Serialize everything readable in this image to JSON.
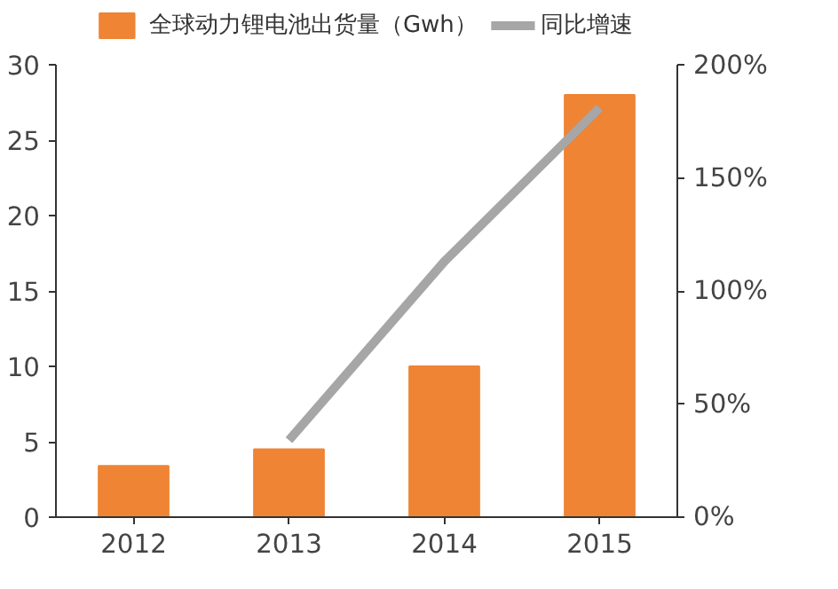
{
  "chart_data": {
    "type": "bar",
    "categories": [
      "2012",
      "2013",
      "2014",
      "2015"
    ],
    "series": [
      {
        "name": "全球动力锂电池出货量（Gwh）",
        "color": "#ee8434",
        "values": [
          3.4,
          4.5,
          10.0,
          28.0
        ]
      },
      {
        "name": "同比增速",
        "type": "line",
        "axis": "y2",
        "color": "#a6a6a6",
        "values": [
          null,
          34,
          113,
          181
        ]
      }
    ],
    "ylim": [
      0,
      30
    ],
    "yticks": [
      0,
      5,
      10,
      15,
      20,
      25,
      30
    ],
    "y2lim": [
      0,
      200
    ],
    "y2ticks": [
      {
        "value": 0,
        "label": "0%"
      },
      {
        "value": 50,
        "label": "50%"
      },
      {
        "value": 100,
        "label": "100%"
      },
      {
        "value": 150,
        "label": "150%"
      },
      {
        "value": 200,
        "label": "200%"
      }
    ],
    "grid": false,
    "legend": "top"
  }
}
